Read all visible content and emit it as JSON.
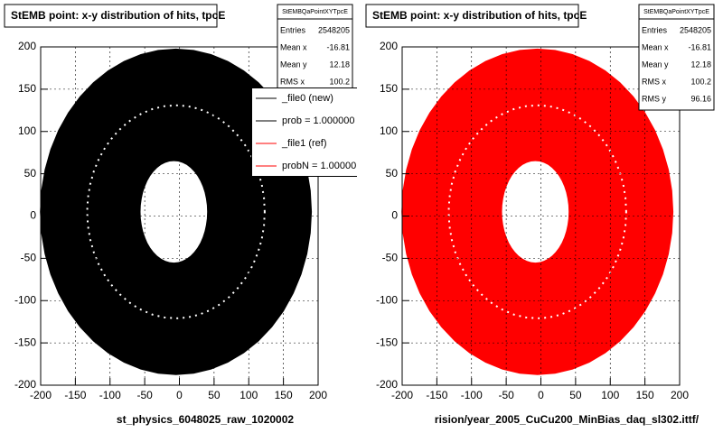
{
  "chart_data": [
    {
      "type": "hist2d",
      "title": "StEMB point: x-y distribution of hits, tpcE",
      "xlabel": "st_physics_6048025_raw_1020002",
      "color": "#000000",
      "xlim": [
        -200,
        200
      ],
      "ylim": [
        -200,
        200
      ],
      "xticks": [
        -200,
        -150,
        -100,
        -50,
        0,
        50,
        100,
        150,
        200
      ],
      "yticks": [
        -200,
        -150,
        -100,
        -50,
        0,
        50,
        100,
        150,
        200
      ],
      "grid": true,
      "stats": {
        "title": "StEMBQaPointXYTpcE",
        "rows": [
          {
            "label": "Entries",
            "value": 2548205
          },
          {
            "label": "Mean x",
            "value": -16.81
          },
          {
            "label": "Mean y",
            "value": 12.18
          },
          {
            "label": "RMS x",
            "value": 100.2
          }
        ]
      },
      "legend": {
        "entries": [
          {
            "label": "_file0 (new)",
            "color": "#000000"
          },
          {
            "label": "prob = 1.000000",
            "color": "#000000"
          },
          {
            "label": "_file1 (ref)",
            "color": "#ff0000"
          },
          {
            "label": "probN = 1.00000",
            "color": "#ff0000"
          }
        ]
      }
    },
    {
      "type": "hist2d",
      "title": "StEMB point: x-y distribution of hits, tpcE",
      "xlabel": "rision/year_2005_CuCu200_MinBias_daq_sl302.ittf/",
      "color": "#ff0000",
      "xlim": [
        -200,
        200
      ],
      "ylim": [
        -200,
        200
      ],
      "xticks": [
        -200,
        -150,
        -100,
        -50,
        0,
        50,
        100,
        150,
        200
      ],
      "yticks": [
        -200,
        -150,
        -100,
        -50,
        0,
        50,
        100,
        150,
        200
      ],
      "grid": true,
      "stats": {
        "title": "StEMBQaPointXYTpcE",
        "rows": [
          {
            "label": "Entries",
            "value": 2548205
          },
          {
            "label": "Mean x",
            "value": -16.81
          },
          {
            "label": "Mean y",
            "value": 12.18
          },
          {
            "label": "RMS x",
            "value": 100.2
          },
          {
            "label": "RMS y",
            "value": 96.16
          }
        ]
      }
    }
  ]
}
